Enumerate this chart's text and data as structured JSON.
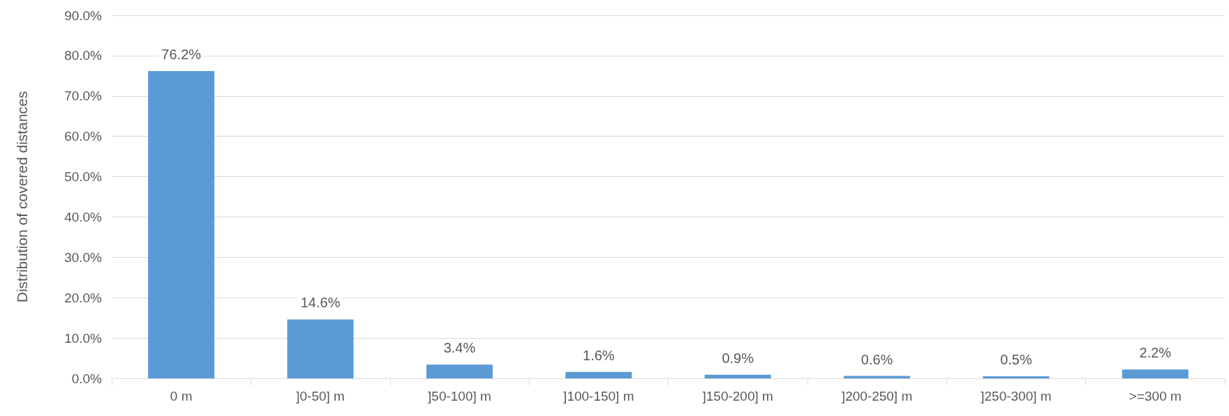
{
  "chart_data": {
    "type": "bar",
    "ylabel": "Distribution of covered distances",
    "categories": [
      "0 m",
      "]0-50] m",
      "]50-100] m",
      "]100-150] m",
      "]150-200] m",
      "]200-250] m",
      "]250-300] m",
      ">=300 m"
    ],
    "values": [
      76.2,
      14.6,
      3.4,
      1.6,
      0.9,
      0.6,
      0.5,
      2.2
    ],
    "value_labels": [
      "76.2%",
      "14.6%",
      "3.4%",
      "1.6%",
      "0.9%",
      "0.6%",
      "0.5%",
      "2.2%"
    ],
    "color": "#5b9bd5",
    "ylim": [
      0,
      90
    ],
    "yticks": [
      {
        "value": 0,
        "label": "0.0%"
      },
      {
        "value": 10,
        "label": "10.0%"
      },
      {
        "value": 20,
        "label": "20.0%"
      },
      {
        "value": 30,
        "label": "30.0%"
      },
      {
        "value": 40,
        "label": "40.0%"
      },
      {
        "value": 50,
        "label": "50.0%"
      },
      {
        "value": 60,
        "label": "60.0%"
      },
      {
        "value": 70,
        "label": "70.0%"
      },
      {
        "value": 80,
        "label": "80.0%"
      },
      {
        "value": 90,
        "label": "90.0%"
      }
    ],
    "grid": "y"
  }
}
